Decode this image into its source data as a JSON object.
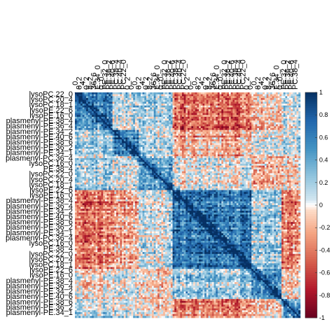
{
  "chart_data": {
    "type": "heatmap",
    "colorbar": {
      "ticks": [
        1,
        0.8,
        0.6,
        0.4,
        0.2,
        0,
        -0.2,
        -0.4,
        -0.6,
        -0.8,
        -1
      ],
      "tick_labels": [
        "1",
        "0.8",
        "0.6",
        "0.4",
        "0.2",
        "0",
        "-0.2",
        "-0.4",
        "-0.6",
        "-0.8",
        "-1"
      ],
      "range": [
        -1,
        1
      ],
      "colors": {
        "low": "#67001f",
        "mid": "#ffffff",
        "high": "#053061"
      }
    },
    "top_labels": [
      {
        "text": "_0"
      },
      {
        "text": "8_2"
      },
      {
        "text": "_4"
      },
      {
        "text": "0_2"
      },
      {
        "text": "8_2"
      },
      {
        "text": "36_6"
      },
      {
        "text": "E.34_0"
      },
      {
        "text": "0_0"
      },
      {
        "text": "PE.32_0"
      },
      {
        "text": "PE.36_2"
      },
      {
        "text": "PE.40_6"
      },
      {
        "text": "PC.38_4"
      },
      {
        "text": "PC.40_4"
      },
      {
        "text": "PC.22_0"
      },
      {
        "text": "0_2"
      },
      {
        "text": "0"
      }
    ],
    "left_labels": [
      {
        "text": "lysoPC.22_0"
      },
      {
        "text": "lysoPC.20_4"
      },
      {
        "text": "lysoPC.18_1"
      },
      {
        "text": "lysoPE.22_6"
      },
      {
        "text": "lysoPE.16_0"
      },
      {
        "text": "plasmenyl-PE.38_4"
      },
      {
        "text": "plasmenyl-PE.36_4"
      },
      {
        "text": "plasmenyl-PE.34_2"
      },
      {
        "text": "plasmenyl-PE.40_6"
      },
      {
        "text": "plasmenyl-PE.38_6"
      },
      {
        "text": "plasmenyl-PE.36_2"
      },
      {
        "text": "plasmenyl-PE.34_1"
      },
      {
        "text": "plasmenyl-PC.36_4"
      },
      {
        "text": "lysoPC.16_0"
      },
      {
        "text": "PE.38_4"
      }
    ],
    "xlim": [
      0,
      1
    ],
    "ylim": [
      0,
      1
    ],
    "grid": false,
    "legend": "right colorbar"
  }
}
